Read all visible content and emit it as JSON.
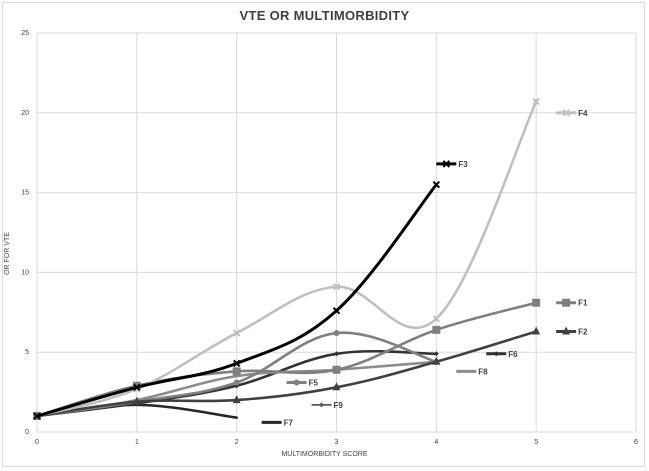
{
  "chart_data": {
    "type": "line",
    "title": "VTE OR MULTIMORBIDITY",
    "xlabel": "MULTIMORBIDITY SCORE",
    "ylabel": "OR FOR VTE",
    "xlim": [
      0,
      6
    ],
    "ylim": [
      0,
      25
    ],
    "x_ticks": [
      0,
      1,
      2,
      3,
      4,
      5,
      6
    ],
    "y_ticks": [
      0,
      5,
      10,
      15,
      20,
      25
    ],
    "grid": true,
    "smoothed": true,
    "legend_position": "inline at series ends",
    "series": [
      {
        "name": "F1",
        "color": "#7f7f7f",
        "marker": "square",
        "x": [
          0,
          1,
          2,
          3,
          4,
          5
        ],
        "values": [
          1.0,
          2.9,
          3.8,
          3.9,
          6.4,
          8.1
        ]
      },
      {
        "name": "F2",
        "color": "#404040",
        "marker": "triangle",
        "x": [
          0,
          1,
          2,
          3,
          4,
          5
        ],
        "values": [
          1.0,
          1.9,
          2.0,
          2.8,
          4.4,
          6.3
        ]
      },
      {
        "name": "F3",
        "color": "#000000",
        "marker": "x",
        "x": [
          0,
          1,
          2,
          3,
          4
        ],
        "values": [
          1.0,
          2.8,
          4.3,
          7.6,
          15.5
        ]
      },
      {
        "name": "F4",
        "color": "#bfbfbf",
        "marker": "x",
        "x": [
          0,
          1,
          2,
          3,
          4,
          5
        ],
        "values": [
          1.0,
          2.7,
          6.2,
          9.1,
          7.1,
          20.7
        ]
      },
      {
        "name": "F5",
        "color": "#808080",
        "marker": "circle",
        "x": [
          0,
          1,
          2,
          3,
          4
        ],
        "values": [
          1.0,
          1.9,
          3.1,
          6.2,
          4.4
        ]
      },
      {
        "name": "F6",
        "color": "#333333",
        "marker": "diamond",
        "x": [
          0,
          1,
          2,
          3,
          4
        ],
        "values": [
          1.0,
          1.8,
          2.9,
          4.9,
          4.9
        ]
      },
      {
        "name": "F7",
        "color": "#262626",
        "marker": "none",
        "x": [
          0,
          1,
          2
        ],
        "values": [
          1.0,
          1.7,
          0.9
        ]
      },
      {
        "name": "F8",
        "color": "#8c8c8c",
        "marker": "none",
        "x": [
          0,
          1,
          2,
          3,
          4
        ],
        "values": [
          1.0,
          2.0,
          3.5,
          3.9,
          4.4
        ]
      },
      {
        "name": "F9",
        "color": "#595959",
        "marker": "diamond",
        "x": [
          0,
          1,
          2
        ],
        "values": [
          1.0,
          1.8,
          2.9
        ]
      }
    ],
    "legend_labels": [
      {
        "name": "F4",
        "x": 5.2,
        "y": 20.0
      },
      {
        "name": "F3",
        "x": 4.0,
        "y": 16.8
      },
      {
        "name": "F1",
        "x": 5.2,
        "y": 8.1
      },
      {
        "name": "F2",
        "x": 5.2,
        "y": 6.3
      },
      {
        "name": "F6",
        "x": 4.5,
        "y": 4.9
      },
      {
        "name": "F8",
        "x": 4.2,
        "y": 3.8
      },
      {
        "name": "F5",
        "x": 2.5,
        "y": 3.1
      },
      {
        "name": "F9",
        "x": 2.75,
        "y": 1.7
      },
      {
        "name": "F7",
        "x": 2.25,
        "y": 0.6
      }
    ]
  }
}
